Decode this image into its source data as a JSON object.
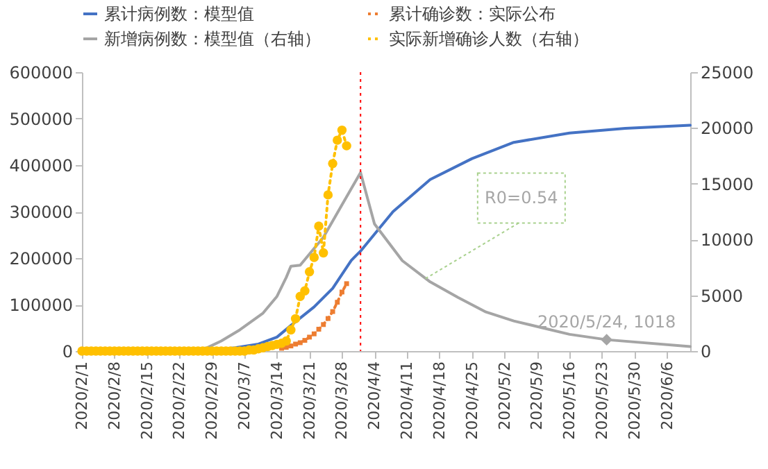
{
  "chart_data": {
    "type": "line",
    "legend": "top",
    "grid": false,
    "xlim": [
      "2020-02-01",
      "2020-06-11"
    ],
    "xticks": [
      {
        "value": "2020-02-01",
        "label": "2020/2/1"
      },
      {
        "value": "2020-02-08",
        "label": "2020/2/8"
      },
      {
        "value": "2020-02-15",
        "label": "2020/2/15"
      },
      {
        "value": "2020-02-22",
        "label": "2020/2/22"
      },
      {
        "value": "2020-02-29",
        "label": "2020/2/29"
      },
      {
        "value": "2020-03-07",
        "label": "2020/3/7"
      },
      {
        "value": "2020-03-14",
        "label": "2020/3/14"
      },
      {
        "value": "2020-03-21",
        "label": "2020/3/21"
      },
      {
        "value": "2020-03-28",
        "label": "2020/3/28"
      },
      {
        "value": "2020-04-04",
        "label": "2020/4/4"
      },
      {
        "value": "2020-04-11",
        "label": "2020/4/11"
      },
      {
        "value": "2020-04-18",
        "label": "2020/4/18"
      },
      {
        "value": "2020-04-25",
        "label": "2020/4/25"
      },
      {
        "value": "2020-05-02",
        "label": "2020/5/2"
      },
      {
        "value": "2020-05-09",
        "label": "2020/5/9"
      },
      {
        "value": "2020-05-16",
        "label": "2020/5/16"
      },
      {
        "value": "2020-05-23",
        "label": "2020/5/23"
      },
      {
        "value": "2020-05-30",
        "label": "2020/5/30"
      },
      {
        "value": "2020-06-06",
        "label": "2020/6/6"
      }
    ],
    "ylim": [
      0,
      600000
    ],
    "yticks": [
      0,
      100000,
      200000,
      300000,
      400000,
      500000,
      600000
    ],
    "y2lim": [
      0,
      25000
    ],
    "y2ticks": [
      0,
      5000,
      10000,
      15000,
      20000,
      25000
    ],
    "series": [
      {
        "name": "累计病例数：模型值",
        "color": "#4472c4",
        "marker": "none",
        "line_style": "solid",
        "x": [
          "2020-03-01",
          "2020-03-05",
          "2020-03-10",
          "2020-03-14",
          "2020-03-17",
          "2020-03-22",
          "2020-03-26",
          "2020-03-30",
          "2020-04-01",
          "2020-04-08",
          "2020-04-16",
          "2020-04-25",
          "2020-05-04",
          "2020-05-16",
          "2020-05-28",
          "2020-06-11"
        ],
        "values": [
          3000,
          7000,
          15000,
          30000,
          55000,
          95000,
          135000,
          195000,
          215000,
          300000,
          369000,
          414000,
          449000,
          469000,
          479000,
          486000
        ]
      },
      {
        "name": "累计确诊数：实际公布",
        "color": "#ed7d31",
        "marker": "square",
        "line_style": "dotted",
        "x": [
          "2020-03-15",
          "2020-03-16",
          "2020-03-17",
          "2020-03-18",
          "2020-03-19",
          "2020-03-20",
          "2020-03-21",
          "2020-03-22",
          "2020-03-23",
          "2020-03-24",
          "2020-03-25",
          "2020-03-26",
          "2020-03-27",
          "2020-03-28",
          "2020-03-29"
        ],
        "values": [
          6000,
          8000,
          11000,
          15000,
          18000,
          23000,
          30000,
          37000,
          47000,
          57000,
          70000,
          85000,
          105000,
          127000,
          145000
        ]
      },
      {
        "name": "新增病例数：模型值（右轴）",
        "color": "#a5a5a5",
        "axis": "y2",
        "marker": "none",
        "line_style": "solid",
        "x": [
          "2020-02-01",
          "2020-02-20",
          "2020-02-25",
          "2020-02-28",
          "2020-03-02",
          "2020-03-06",
          "2020-03-11",
          "2020-03-14",
          "2020-03-16",
          "2020-03-17",
          "2020-03-19",
          "2020-03-24",
          "2020-03-28",
          "2020-04-01",
          "2020-04-04",
          "2020-04-10",
          "2020-04-16",
          "2020-04-22",
          "2020-04-28",
          "2020-05-04",
          "2020-05-10",
          "2020-05-16",
          "2020-05-24",
          "2020-06-11"
        ],
        "values": [
          0,
          0,
          100,
          300,
          900,
          1900,
          3400,
          4900,
          6600,
          7600,
          7700,
          10200,
          13100,
          16000,
          11400,
          8100,
          6200,
          4800,
          3500,
          2700,
          2100,
          1500,
          1018,
          400
        ]
      },
      {
        "name": "实际新增确诊人数（右轴）",
        "color": "#ffc000",
        "axis": "y2",
        "marker": "circle",
        "line_style": "dotted",
        "x": [
          "2020-02-01",
          "2020-02-02",
          "2020-02-03",
          "2020-02-04",
          "2020-02-05",
          "2020-02-06",
          "2020-02-07",
          "2020-02-08",
          "2020-02-09",
          "2020-02-10",
          "2020-02-11",
          "2020-02-12",
          "2020-02-13",
          "2020-02-14",
          "2020-02-15",
          "2020-02-16",
          "2020-02-17",
          "2020-02-18",
          "2020-02-19",
          "2020-02-20",
          "2020-02-21",
          "2020-02-22",
          "2020-02-23",
          "2020-02-24",
          "2020-02-25",
          "2020-02-26",
          "2020-02-27",
          "2020-02-28",
          "2020-02-29",
          "2020-03-01",
          "2020-03-02",
          "2020-03-03",
          "2020-03-04",
          "2020-03-05",
          "2020-03-06",
          "2020-03-07",
          "2020-03-08",
          "2020-03-09",
          "2020-03-10",
          "2020-03-11",
          "2020-03-12",
          "2020-03-13",
          "2020-03-14",
          "2020-03-15",
          "2020-03-16",
          "2020-03-17",
          "2020-03-18",
          "2020-03-19",
          "2020-03-20",
          "2020-03-21",
          "2020-03-22",
          "2020-03-23",
          "2020-03-24",
          "2020-03-25",
          "2020-03-26",
          "2020-03-27",
          "2020-03-28",
          "2020-03-29"
        ],
        "values": [
          0,
          0,
          0,
          0,
          0,
          0,
          0,
          0,
          0,
          0,
          0,
          0,
          0,
          0,
          0,
          0,
          0,
          0,
          0,
          0,
          0,
          0,
          0,
          0,
          0,
          0,
          0,
          0,
          0,
          0,
          0,
          0,
          0,
          0,
          0,
          0,
          100,
          100,
          200,
          300,
          400,
          500,
          600,
          700,
          900,
          1900,
          2900,
          4900,
          5400,
          7100,
          8400,
          11200,
          8800,
          14000,
          16800,
          18900,
          19800,
          18400
        ]
      }
    ],
    "ref_lines": [
      {
        "axis": "x",
        "value": "2020-04-01",
        "color": "#ff0000",
        "line_style": "dotted"
      }
    ],
    "annotations": [
      {
        "text": "R0=0.54",
        "x": "2020-04-15",
        "y": 156000
      },
      {
        "text": "2020/5/24, 1018",
        "x": "2020-05-24",
        "y": 1018
      }
    ]
  }
}
